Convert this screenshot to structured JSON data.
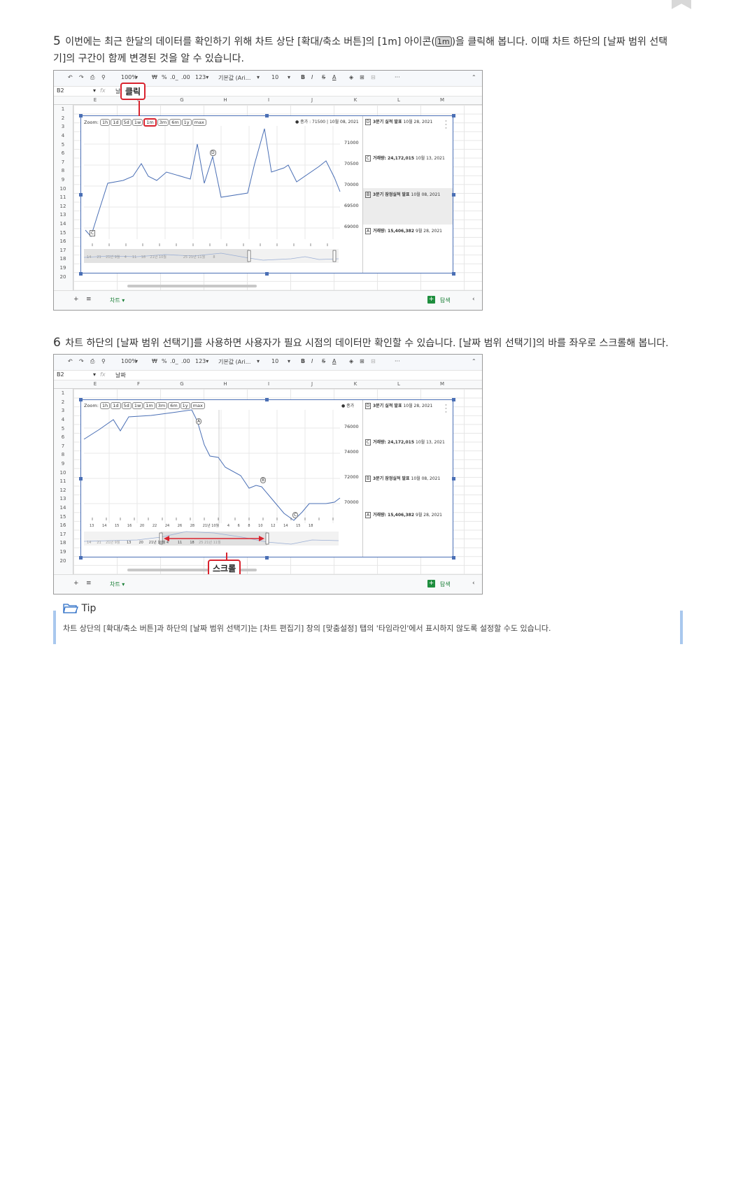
{
  "step5": {
    "number": "5",
    "line1_a": "이번에는 최근 한달의 데이터를 확인하기 위해 차트 상단 [확대/축소 버튼]의 [1m] 아이콘(",
    "icon_label": "1m",
    "line1_b": ")을 클릭해 봅니다. 이때 차트 하단의 [날짜 범위 선택",
    "line2": "기]의 구간이 함께 변경된 것을 알 수 있습니다.",
    "callout": "클릭"
  },
  "step6": {
    "number": "6",
    "text": "차트 하단의 [날짜 범위 선택기]를 사용하면 사용자가 필요 시점의 데이터만 확인할 수 있습니다. [날짜 범위 선택기]의 바를 좌우로 스크롤해 봅니다.",
    "callout": "스크롤"
  },
  "toolbar": {
    "icons": [
      "undo-icon",
      "redo-icon",
      "print-icon",
      "paint-format-icon"
    ],
    "zoom": "100%",
    "currency": "₩",
    "percent": "%",
    "dec_less": ".0_",
    "dec_more": ".00",
    "number_format": "123▾",
    "font": "기본값 (Ari...",
    "font_size": "10",
    "bold": "B",
    "italic": "I",
    "strike": "S",
    "text_color": "A",
    "more": "···"
  },
  "sheet1": {
    "cell_ref": "B2",
    "formula": "날",
    "columns": [
      "E",
      "F",
      "G",
      "H",
      "I",
      "J",
      "K",
      "L",
      "M"
    ],
    "rows": [
      "1",
      "2",
      "3",
      "4",
      "5",
      "6",
      "7",
      "8",
      "9",
      "10",
      "11",
      "12",
      "13",
      "14",
      "15",
      "16",
      "17",
      "18",
      "19",
      "20"
    ],
    "zoom_label": "Zoom:",
    "zoom_buttons": [
      "1h",
      "1d",
      "5d",
      "1w",
      "1m",
      "3m",
      "6m",
      "1y",
      "max"
    ],
    "zoom_selected": "1m",
    "legend": "● 종가 : 71500 | 10월 08, 2021",
    "yticks": [
      "71000",
      "70500",
      "70000",
      "69500",
      "69000"
    ],
    "flags": [
      "C",
      "D"
    ],
    "annotations": [
      {
        "letter": "D",
        "title": "3분기 실적 발표",
        "date": "10월 28, 2021"
      },
      {
        "letter": "C",
        "title": "거래량: 24,172,015",
        "date": "10월 13, 2021"
      },
      {
        "letter": "B",
        "title": "3분기 잠정실적 발표",
        "date": "10월 08, 2021"
      },
      {
        "letter": "A",
        "title": "거래량: 15,406,382",
        "date": "9월 28, 2021"
      }
    ],
    "selector_labels": [
      "14",
      "21",
      "21년 9월",
      "4",
      "11",
      "18",
      "21년 10월",
      "25",
      "21년 11월",
      "8"
    ],
    "tab": "차트 ▾",
    "explore": "탐색"
  },
  "sheet2": {
    "cell_ref": "B2",
    "formula": "날짜",
    "legend": "● 종가",
    "yticks": [
      "76000",
      "74000",
      "72000",
      "70000"
    ],
    "flags": [
      "A",
      "B",
      "C"
    ],
    "xticks": [
      "13",
      "14",
      "15",
      "16",
      "20",
      "22",
      "24",
      "26",
      "28",
      "21년 10월",
      "4",
      "6",
      "8",
      "10",
      "12",
      "14",
      "15",
      "18"
    ],
    "selector_labels": [
      "14",
      "21",
      "21년 9월",
      "13",
      "20",
      "21년 10월",
      "4",
      "11",
      "18",
      "25",
      "21년 11월"
    ]
  },
  "tip": {
    "title": "Tip",
    "text": "차트 상단의 [확대/축소 버튼]과 하단의 [날짜 범위 선택기]는 [차트 편집기] 창의 [맞춤설정] 탭의 '타임라인'에서 표시하지 않도록 설정할 수도 있습니다."
  },
  "colors": {
    "line": "#4a6fb5",
    "callout": "#d9232e",
    "tip_bar": "#a9c8ee"
  }
}
